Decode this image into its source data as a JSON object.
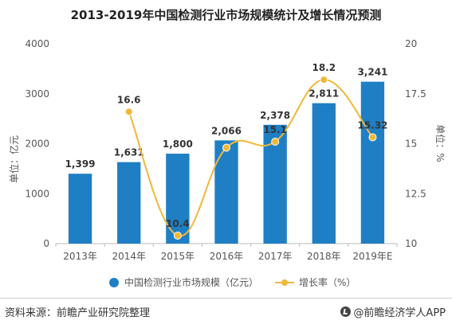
{
  "title": "2013-2019年中国检测行业市场规模统计及增长情况预测",
  "footer": {
    "source": "资料来源：前瞻产业研究院整理",
    "brand": "@前瞻经济学人APP"
  },
  "colors": {
    "bar": "#1f7fc4",
    "line": "#f0b83a",
    "axis": "#bbbbbb"
  },
  "chart_data": {
    "type": "bar",
    "categories": [
      "2013年",
      "2014年",
      "2015年",
      "2016年",
      "2017年",
      "2018年",
      "2019年E"
    ],
    "series": [
      {
        "name": "中国检测行业市场规模（亿元）",
        "type": "bar",
        "axis": "left",
        "values": [
          1399,
          1631,
          1800,
          2066,
          2378,
          2811,
          3241
        ],
        "labels": [
          "1,399",
          "1,631",
          "1,800",
          "2,066",
          "2,378",
          "2,811",
          "3,241"
        ]
      },
      {
        "name": "增长率（%）",
        "type": "line",
        "axis": "right",
        "values": [
          null,
          16.6,
          10.4,
          14.8,
          15.1,
          18.2,
          15.32
        ],
        "labels": [
          "",
          "16.6",
          "10.4",
          "",
          "15.1",
          "18.2",
          "15.32"
        ]
      }
    ],
    "left_axis": {
      "label": "单位：亿元",
      "range": [
        0,
        4000
      ],
      "ticks": [
        "0",
        "1000",
        "2000",
        "3000",
        "4000"
      ]
    },
    "right_axis": {
      "label": "单位：%",
      "range": [
        10,
        20
      ],
      "ticks": [
        "10",
        "12.5",
        "15",
        "17.5",
        "20"
      ]
    },
    "legend_position": "bottom"
  }
}
